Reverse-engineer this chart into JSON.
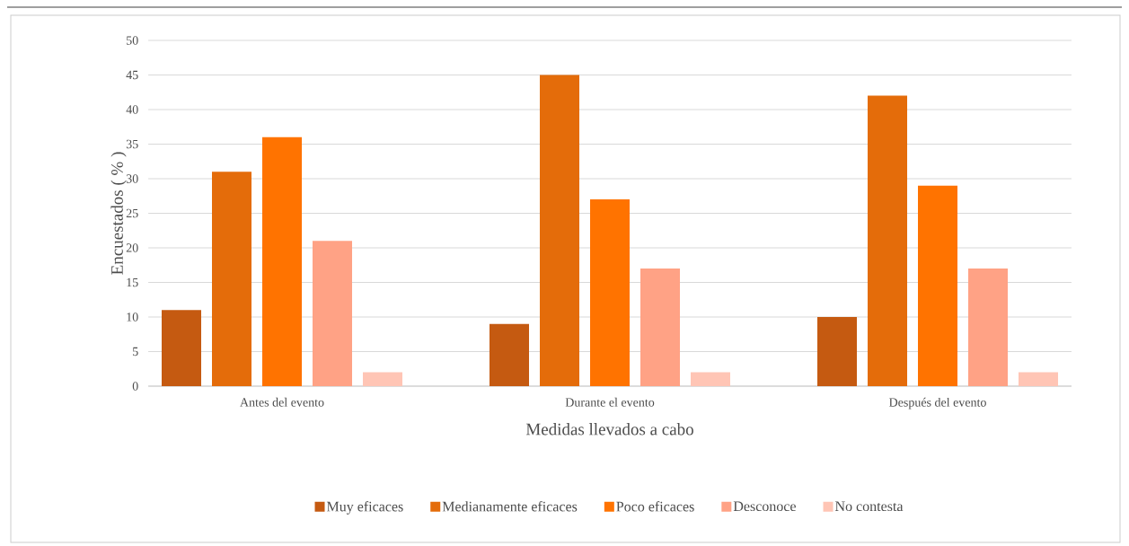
{
  "chart_data": {
    "type": "bar",
    "xlabel": "Medidas llevados a cabo",
    "ylabel": "Encuestados ( % )",
    "categories": [
      "Antes del evento",
      "Durante el evento",
      "Después del evento"
    ],
    "series": [
      {
        "name": "Muy eficaces",
        "color": "#c55a11",
        "values": [
          11,
          9,
          10
        ]
      },
      {
        "name": "Medianamente eficaces",
        "color": "#e46c0a",
        "values": [
          31,
          45,
          42
        ]
      },
      {
        "name": "Poco eficaces",
        "color": "#ff7300",
        "values": [
          36,
          27,
          29
        ]
      },
      {
        "name": "Desconoce",
        "color": "#ffa285",
        "values": [
          21,
          17,
          17
        ]
      },
      {
        "name": "No contesta",
        "color": "#ffc5b5",
        "values": [
          2,
          2,
          2
        ]
      }
    ],
    "ylim": [
      0,
      50
    ],
    "yticks": [
      0,
      5,
      10,
      15,
      20,
      25,
      30,
      35,
      40,
      45,
      50
    ],
    "grid": "y",
    "legend": "bottom"
  }
}
